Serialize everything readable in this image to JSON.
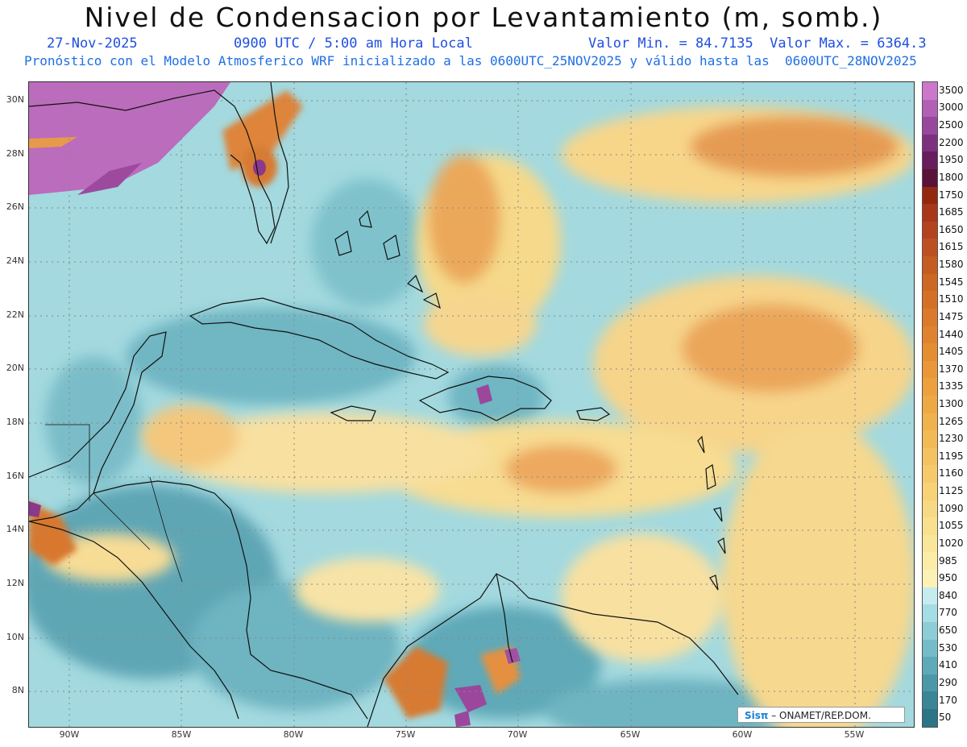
{
  "header": {
    "title": "Nivel de Condensacion por Levantamiento (m, somb.)",
    "date": "27-Nov-2025",
    "time": "0900 UTC / 5:00 am Hora Local",
    "minmax": "Valor Min. = 84.7135  Valor Max. = 6364.3",
    "model_line": "Pronóstico con el Modelo Atmosferico WRF inicializado a las 0600UTC_25NOV2025 y válido hasta las  0600UTC_28NOV2025"
  },
  "axes": {
    "lat_labels": [
      "30N",
      "28N",
      "26N",
      "24N",
      "22N",
      "20N",
      "18N",
      "16N",
      "14N",
      "12N",
      "10N",
      "8N"
    ],
    "lat_values": [
      30,
      28,
      26,
      24,
      22,
      20,
      18,
      16,
      14,
      12,
      10,
      8
    ],
    "lon_labels": [
      "90W",
      "85W",
      "80W",
      "75W",
      "70W",
      "65W",
      "60W",
      "55W"
    ],
    "lon_values": [
      -90,
      -85,
      -80,
      -75,
      -70,
      -65,
      -60,
      -55
    ],
    "lat_range": [
      6.7,
      30.7
    ],
    "lon_range": [
      -91.8,
      -52.4
    ]
  },
  "colorbar": {
    "labels": [
      "3500",
      "3000",
      "2500",
      "2200",
      "1950",
      "1800",
      "1750",
      "1685",
      "1650",
      "1615",
      "1580",
      "1545",
      "1510",
      "1475",
      "1440",
      "1405",
      "1370",
      "1335",
      "1300",
      "1265",
      "1230",
      "1195",
      "1160",
      "1125",
      "1090",
      "1055",
      "1020",
      "985",
      "950",
      "840",
      "770",
      "650",
      "530",
      "410",
      "290",
      "170",
      "50"
    ],
    "colors": [
      "#cc77cc",
      "#b160b6",
      "#98479d",
      "#7e3080",
      "#681d5c",
      "#5a1238",
      "#94280f",
      "#a8361a",
      "#b34320",
      "#bd5020",
      "#c55c22",
      "#cd6724",
      "#d47026",
      "#db7a2a",
      "#e0832e",
      "#e58d33",
      "#e99738",
      "#eca03e",
      "#eea944",
      "#f0b24c",
      "#f2ba55",
      "#f4c260",
      "#f6ca6b",
      "#f7d276",
      "#f8d983",
      "#f9e08e",
      "#fae69a",
      "#fbeca8",
      "#fcf2b6",
      "#c5ecef",
      "#a5dde4",
      "#8ccdd6",
      "#74bdc8",
      "#5eaab8",
      "#4b98a8",
      "#3a8697",
      "#2c7487"
    ]
  },
  "credit": {
    "logo": "Sisπ",
    "text": " – ONAMET/REP.DOM."
  }
}
